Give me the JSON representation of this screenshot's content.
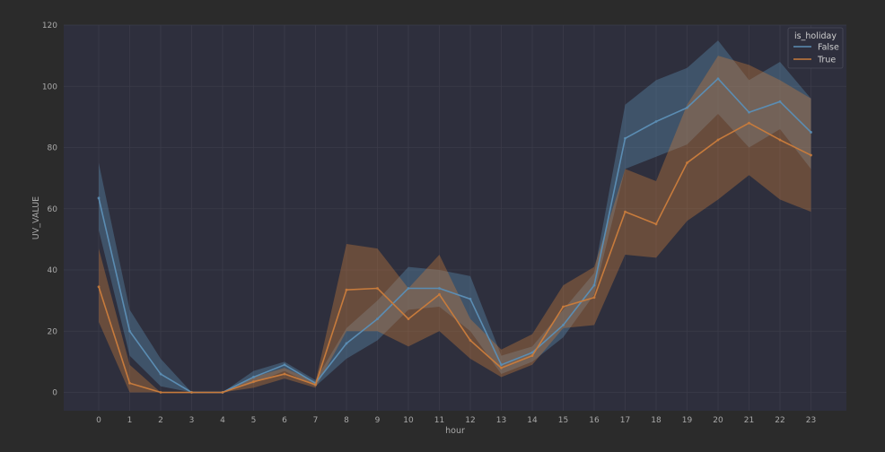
{
  "chart_data": {
    "type": "line",
    "title": "",
    "xlabel": "hour",
    "ylabel": "UV_VALUE",
    "x": [
      0,
      1,
      2,
      3,
      4,
      5,
      6,
      7,
      8,
      9,
      10,
      11,
      12,
      13,
      14,
      15,
      16,
      17,
      18,
      19,
      20,
      21,
      22,
      23
    ],
    "x_tick_labels": [
      "0",
      "1",
      "2",
      "3",
      "4",
      "5",
      "6",
      "7",
      "8",
      "9",
      "10",
      "11",
      "12",
      "13",
      "14",
      "15",
      "16",
      "17",
      "18",
      "19",
      "20",
      "21",
      "22",
      "23"
    ],
    "ylim": [
      -6,
      120
    ],
    "y_ticks": [
      0,
      20,
      40,
      60,
      80,
      100,
      120
    ],
    "y_tick_labels": [
      "0",
      "20",
      "40",
      "60",
      "80",
      "100",
      "120"
    ],
    "grid": true,
    "legend": {
      "title": "is_holiday",
      "placement": "top-right"
    },
    "series": [
      {
        "name": "False",
        "color": "#5b8db3",
        "values": [
          63.5,
          20,
          6,
          0,
          0,
          5,
          9,
          3,
          16,
          24,
          34,
          34,
          30.5,
          9,
          13,
          22,
          35,
          83,
          88.5,
          93,
          102.5,
          91.5,
          95,
          85
        ],
        "ci_lower": [
          53,
          12,
          2,
          0,
          0,
          3,
          7,
          2,
          11,
          17,
          27,
          28,
          20,
          6,
          10,
          18,
          32,
          73,
          77,
          81,
          91,
          80,
          86,
          73
        ],
        "ci_upper": [
          75,
          27,
          11,
          0,
          0,
          7,
          10,
          4,
          21,
          30,
          41,
          40,
          38,
          12,
          15,
          27,
          39,
          94,
          102,
          106,
          115,
          102,
          108,
          96
        ]
      },
      {
        "name": "True",
        "color": "#c77b3c",
        "values": [
          34.5,
          3,
          0,
          0,
          0,
          3.5,
          6,
          2.5,
          33.5,
          34,
          24,
          32,
          17,
          8,
          12,
          28,
          31,
          59,
          55,
          75,
          82.5,
          88,
          82.5,
          77.5
        ],
        "ci_lower": [
          23,
          0,
          0,
          0,
          0,
          1.5,
          4.5,
          1.5,
          20,
          20,
          15,
          20,
          11,
          5,
          9,
          21,
          22,
          45,
          44,
          56,
          63,
          71,
          63,
          59
        ],
        "ci_upper": [
          47,
          9,
          0,
          0,
          0,
          5,
          8,
          3.5,
          48.5,
          47,
          34,
          45,
          24,
          14,
          19,
          35,
          41,
          73,
          69,
          94,
          110,
          107,
          102,
          96
        ]
      }
    ]
  }
}
